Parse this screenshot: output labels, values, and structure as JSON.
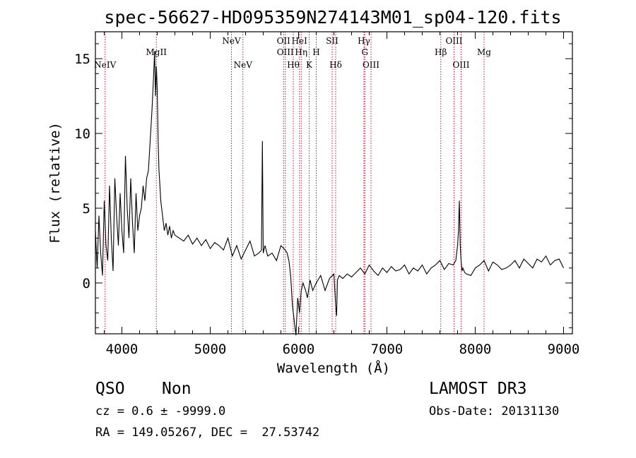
{
  "chart_data": {
    "type": "line",
    "title": "spec-56627-HD095359N274143M01_sp04-120.fits",
    "xlabel": "Wavelength (Å)",
    "ylabel": "Flux (relative)",
    "xlim": [
      3700,
      9100
    ],
    "ylim": [
      -3.4,
      16.8
    ],
    "xticks": [
      4000,
      5000,
      6000,
      7000,
      8000,
      9000
    ],
    "yticks": [
      0,
      5,
      10,
      15
    ],
    "grid": false,
    "legend": "none",
    "line_color": "#000000",
    "marker_line_color": "#c8102e",
    "spectral_lines": [
      {
        "label": "NeIV",
        "wavelength": 3810,
        "row": 3
      },
      {
        "label": "MgII",
        "wavelength": 4390,
        "row": 2
      },
      {
        "label": "NeV",
        "wavelength": 5240,
        "row": 1
      },
      {
        "label": "NeV",
        "wavelength": 5370,
        "row": 3
      },
      {
        "label": "OII",
        "wavelength": 5830,
        "row": 1
      },
      {
        "label": "OIII",
        "wavelength": 5850,
        "row": 2
      },
      {
        "label": "Hθ",
        "wavelength": 5940,
        "row": 3
      },
      {
        "label": "HeI",
        "wavelength": 6010,
        "row": 1
      },
      {
        "label": "Hη",
        "wavelength": 6030,
        "row": 2
      },
      {
        "label": "K",
        "wavelength": 6120,
        "row": 3
      },
      {
        "label": "H",
        "wavelength": 6200,
        "row": 2
      },
      {
        "label": "SII",
        "wavelength": 6380,
        "row": 1
      },
      {
        "label": "Hδ",
        "wavelength": 6420,
        "row": 3
      },
      {
        "label": "Hγ",
        "wavelength": 6740,
        "row": 1
      },
      {
        "label": "G",
        "wavelength": 6750,
        "row": 2
      },
      {
        "label": "OIII",
        "wavelength": 6820,
        "row": 3
      },
      {
        "label": "Hβ",
        "wavelength": 7610,
        "row": 2
      },
      {
        "label": "OIII",
        "wavelength": 7760,
        "row": 1
      },
      {
        "label": "OIII",
        "wavelength": 7840,
        "row": 3
      },
      {
        "label": "Mg",
        "wavelength": 8100,
        "row": 2
      }
    ],
    "series": [
      {
        "x": [
          3700,
          3720,
          3740,
          3760,
          3780,
          3800,
          3820,
          3840,
          3860,
          3880,
          3900,
          3920,
          3940,
          3960,
          3980,
          4000,
          4020,
          4040,
          4060,
          4080,
          4100,
          4120,
          4140,
          4160,
          4180,
          4200,
          4220,
          4240,
          4260,
          4280,
          4300,
          4320,
          4340,
          4360,
          4370,
          4380,
          4390,
          4400,
          4410,
          4420,
          4430,
          4440,
          4460,
          4480,
          4500,
          4520,
          4540,
          4560,
          4580,
          4600,
          4650,
          4700,
          4750,
          4800,
          4850,
          4900,
          4950,
          5000,
          5050,
          5100,
          5150,
          5200,
          5250,
          5300,
          5350,
          5400,
          5450,
          5500,
          5550,
          5580,
          5590,
          5600,
          5620,
          5650,
          5700,
          5750,
          5800,
          5850,
          5870,
          5890,
          5910,
          5930,
          5950,
          5970,
          5990,
          6010,
          6030,
          6050,
          6080,
          6100,
          6130,
          6160,
          6200,
          6250,
          6300,
          6350,
          6400,
          6420,
          6430,
          6440,
          6460,
          6500,
          6550,
          6600,
          6650,
          6700,
          6750,
          6800,
          6850,
          6900,
          6950,
          7000,
          7050,
          7100,
          7150,
          7200,
          7250,
          7300,
          7350,
          7400,
          7450,
          7500,
          7550,
          7600,
          7650,
          7700,
          7750,
          7780,
          7800,
          7810,
          7820,
          7830,
          7840,
          7850,
          7860,
          7880,
          7900,
          7950,
          8000,
          8050,
          8100,
          8150,
          8200,
          8250,
          8300,
          8350,
          8400,
          8450,
          8500,
          8550,
          8600,
          8650,
          8700,
          8750,
          8800,
          8850,
          8900,
          8950,
          9000
        ],
        "y": [
          3.5,
          1.0,
          4.5,
          2.0,
          0.5,
          5.5,
          2.5,
          1.5,
          6.5,
          3.0,
          0.8,
          7.0,
          4.5,
          2.5,
          6.0,
          3.5,
          2.0,
          8.5,
          5.0,
          3.0,
          7.0,
          4.0,
          2.0,
          6.0,
          3.5,
          4.5,
          5.0,
          6.5,
          5.5,
          7.0,
          7.5,
          9.5,
          11.5,
          14.0,
          15.5,
          12.5,
          14.5,
          13.0,
          9.5,
          7.5,
          6.5,
          5.5,
          4.5,
          3.5,
          4.0,
          3.2,
          3.8,
          3.0,
          3.5,
          3.2,
          3.0,
          2.8,
          3.2,
          2.6,
          3.0,
          2.5,
          2.9,
          2.3,
          2.7,
          2.5,
          2.2,
          3.0,
          1.8,
          2.5,
          1.6,
          2.2,
          2.8,
          1.8,
          2.0,
          2.2,
          9.5,
          2.0,
          2.5,
          1.8,
          2.0,
          1.5,
          2.5,
          2.2,
          2.0,
          1.5,
          0.5,
          -1.5,
          -2.5,
          -3.5,
          -1.0,
          -2.0,
          -0.5,
          0.0,
          -0.5,
          -1.0,
          0.2,
          -0.5,
          0.0,
          0.5,
          -0.5,
          0.3,
          0.6,
          -1.5,
          -2.2,
          0.2,
          0.5,
          0.3,
          0.6,
          0.4,
          0.7,
          1.0,
          0.6,
          1.2,
          0.8,
          0.5,
          1.0,
          0.7,
          1.1,
          0.8,
          0.9,
          1.2,
          0.6,
          1.0,
          0.8,
          1.2,
          0.6,
          1.0,
          1.2,
          1.5,
          0.9,
          1.3,
          1.2,
          1.5,
          2.5,
          3.5,
          5.5,
          2.5,
          1.5,
          0.8,
          1.0,
          0.7,
          0.6,
          0.5,
          1.0,
          1.2,
          1.5,
          0.8,
          1.4,
          1.2,
          0.9,
          1.0,
          1.2,
          1.5,
          1.0,
          1.6,
          1.3,
          1.0,
          1.6,
          1.4,
          1.8,
          1.2,
          1.5,
          1.6,
          1.0
        ]
      }
    ]
  },
  "info": {
    "class": "QSO",
    "subclass": "Non",
    "survey": "LAMOST DR3",
    "cz": "cz = 0.6 ± -9999.0",
    "obs_date": "Obs-Date: 20131130",
    "coords": "RA = 149.05267, DEC =  27.53742"
  }
}
